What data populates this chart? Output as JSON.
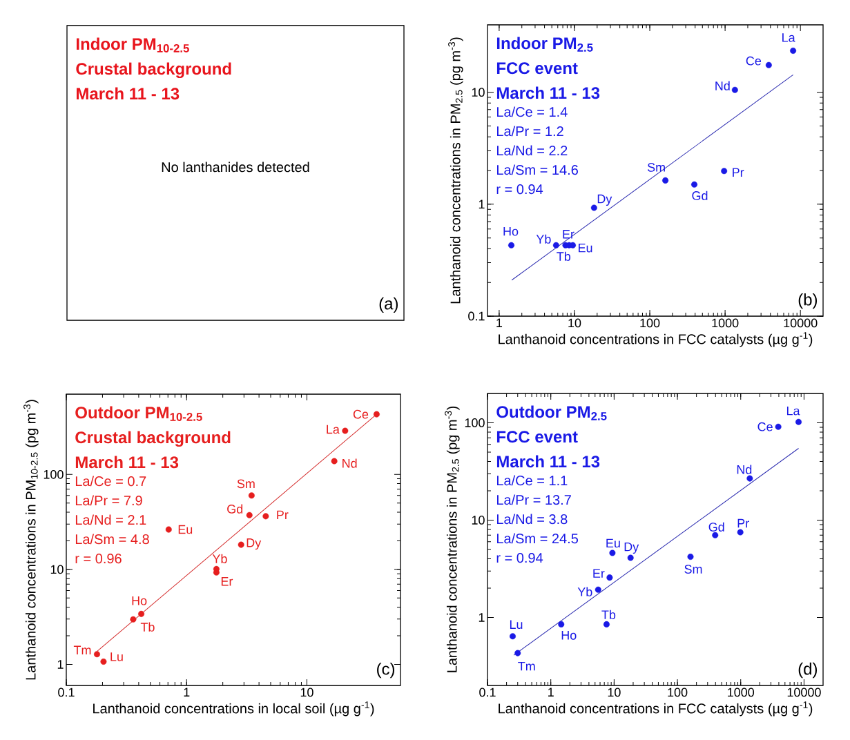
{
  "chart_data": [
    {
      "type": "other",
      "color": "#e8141c",
      "title": "Indoor PM$_{10-2.5}$",
      "subtitle": "Crustal background",
      "annotations": [
        "March 11 - 13",
        "No lanthanides detected",
        "(a)"
      ]
    },
    {
      "type": "scatter",
      "title": "Indoor PM$_{2.5}$",
      "subtitle": "FCC event",
      "xlabel": "Lanthanoid concentrations in FCC catalysts (µg g$^{-1}$)",
      "ylabel": "Lanthanoid concentrations in PM$_{2.5}$ (pg m$^{-3}$)",
      "log": "xy",
      "xlim": [
        0.7,
        20000
      ],
      "ylim": [
        0.1,
        40
      ],
      "xticks": [
        1,
        10,
        100,
        1000,
        10000
      ],
      "yticks": [
        0.1,
        1,
        10
      ],
      "series": [
        {
          "color": "#1a1ae6",
          "marker": "circle",
          "x": [
            8000,
            3800,
            970,
            1350,
            161,
            9.5,
            390,
            8.5,
            18.2,
            1.45,
            7.6,
            5.7
          ],
          "values": [
            23.5,
            17.5,
            1.98,
            10.5,
            1.63,
            0.43,
            1.5,
            0.43,
            0.93,
            0.43,
            0.43,
            0.43
          ]
        },
        {
          "type": "line",
          "color": "#2b2bb0",
          "x": [
            1.47,
            8000
          ],
          "values": [
            0.21,
            14.3
          ]
        }
      ],
      "annotations": [
        "March 11 - 13",
        "La/Ce = 1.4",
        "La/Pr = 1.2",
        "La/Nd = 2.2",
        "La/Sm = 14.6",
        "r = 0.94",
        {
          "text": "La",
          "x": 8000,
          "y": 23.5
        },
        {
          "text": "Ce",
          "x": 3800,
          "y": 17.5
        },
        {
          "text": "Pr",
          "x": 970,
          "y": 1.98
        },
        {
          "text": "Nd",
          "x": 1350,
          "y": 10.5
        },
        {
          "text": "Sm",
          "x": 161,
          "y": 1.63
        },
        {
          "text": "Eu",
          "x": 9.5,
          "y": 0.43
        },
        {
          "text": "Gd",
          "x": 390,
          "y": 1.5
        },
        {
          "text": "Tb",
          "x": 8.5,
          "y": 0.43
        },
        {
          "text": "Dy",
          "x": 18.2,
          "y": 0.93
        },
        {
          "text": "Ho",
          "x": 1.45,
          "y": 0.43
        },
        {
          "text": "Er",
          "x": 7.6,
          "y": 0.43
        },
        {
          "text": "Yb",
          "x": 5.7,
          "y": 0.43
        },
        "(b)"
      ]
    },
    {
      "type": "scatter",
      "title": "Outdoor PM$_{10-2.5}$",
      "subtitle": "Crustal background",
      "xlabel": "Lanthanoid concentrations in local soil (µg g$^{-1}$)",
      "ylabel": "Lanthanoid concentrations in PM$_{10-2.5}$ (pg m$^{-3}$)",
      "log": "xy",
      "xlim": [
        0.1,
        60
      ],
      "ylim": [
        0.6,
        700
      ],
      "xticks": [
        0.1,
        1,
        10
      ],
      "yticks": [
        1,
        10,
        100
      ],
      "series": [
        {
          "color": "#e61e1e",
          "marker": "circle",
          "x": [
            20.8,
            38,
            4.55,
            16.9,
            3.47,
            0.71,
            3.33,
            0.36,
            2.84,
            0.42,
            1.77,
            0.18,
            1.77,
            0.204
          ],
          "values": [
            288,
            430,
            36.3,
            138,
            60,
            26.3,
            37.3,
            2.98,
            18.2,
            3.4,
            9.3,
            1.28,
            10.1,
            1.07
          ]
        },
        {
          "type": "line",
          "color": "#d42a2a",
          "x": [
            0.18,
            38
          ],
          "values": [
            1.37,
            430
          ]
        }
      ],
      "annotations": [
        "March 11 - 13",
        "La/Ce = 0.7",
        "La/Pr = 7.9",
        "La/Nd = 2.1",
        "La/Sm = 4.8",
        "r = 0.96",
        {
          "text": "La",
          "x": 20.8,
          "y": 288
        },
        {
          "text": "Ce",
          "x": 38,
          "y": 430
        },
        {
          "text": "Pr",
          "x": 4.55,
          "y": 36.3
        },
        {
          "text": "Nd",
          "x": 16.9,
          "y": 138
        },
        {
          "text": "Sm",
          "x": 3.47,
          "y": 60
        },
        {
          "text": "Eu",
          "x": 0.71,
          "y": 26.3
        },
        {
          "text": "Gd",
          "x": 3.33,
          "y": 37.3
        },
        {
          "text": "Tb",
          "x": 0.36,
          "y": 2.98
        },
        {
          "text": "Dy",
          "x": 2.84,
          "y": 18.2
        },
        {
          "text": "Ho",
          "x": 0.42,
          "y": 3.4
        },
        {
          "text": "Er",
          "x": 1.77,
          "y": 9.3
        },
        {
          "text": "Tm",
          "x": 0.18,
          "y": 1.28
        },
        {
          "text": "Yb",
          "x": 1.77,
          "y": 10.1
        },
        {
          "text": "Lu",
          "x": 0.204,
          "y": 1.07
        },
        "(c)"
      ]
    },
    {
      "type": "scatter",
      "title": "Outdoor PM$_{2.5}$",
      "subtitle": "FCC event",
      "xlabel": "Lanthanoid concentrations in FCC catalysts (µg g$^{-1}$)",
      "ylabel": "Lanthanoid concentrations in PM$_{2.5}$ (pg m$^{-3}$)",
      "log": "xy",
      "xlim": [
        0.1,
        20000
      ],
      "ylim": [
        0.2,
        200
      ],
      "xticks": [
        0.1,
        1,
        10,
        100,
        1000,
        10000
      ],
      "yticks": [
        1,
        10,
        100
      ],
      "series": [
        {
          "color": "#1a1ae6",
          "marker": "circle",
          "x": [
            8200,
            3920,
            986,
            1390,
            161,
            9.4,
            395,
            7.6,
            18.2,
            1.46,
            8.5,
            0.3,
            5.6,
            0.25
          ],
          "values": [
            102,
            91,
            7.5,
            26.8,
            4.2,
            4.6,
            7.0,
            0.85,
            4.1,
            0.85,
            2.57,
            0.43,
            1.93,
            0.64
          ]
        },
        {
          "type": "line",
          "color": "#2b2bb0",
          "x": [
            0.26,
            8200
          ],
          "values": [
            0.41,
            54.6
          ]
        }
      ],
      "annotations": [
        "March 11 - 13",
        "La/Ce = 1.1",
        "La/Pr = 13.7",
        "La/Nd = 3.8",
        "La/Sm = 24.5",
        "r = 0.94",
        {
          "text": "La",
          "x": 8200,
          "y": 102
        },
        {
          "text": "Ce",
          "x": 3920,
          "y": 91
        },
        {
          "text": "Pr",
          "x": 986,
          "y": 7.5
        },
        {
          "text": "Nd",
          "x": 1390,
          "y": 26.8
        },
        {
          "text": "Sm",
          "x": 161,
          "y": 4.2
        },
        {
          "text": "Eu",
          "x": 9.4,
          "y": 4.6
        },
        {
          "text": "Gd",
          "x": 395,
          "y": 7.0
        },
        {
          "text": "Tb",
          "x": 7.6,
          "y": 0.85
        },
        {
          "text": "Dy",
          "x": 18.2,
          "y": 4.1
        },
        {
          "text": "Ho",
          "x": 1.46,
          "y": 0.85
        },
        {
          "text": "Er",
          "x": 8.5,
          "y": 2.57
        },
        {
          "text": "Tm",
          "x": 0.3,
          "y": 0.43
        },
        {
          "text": "Yb",
          "x": 5.6,
          "y": 1.93
        },
        {
          "text": "Lu",
          "x": 0.25,
          "y": 0.64
        },
        "(d)"
      ]
    }
  ]
}
